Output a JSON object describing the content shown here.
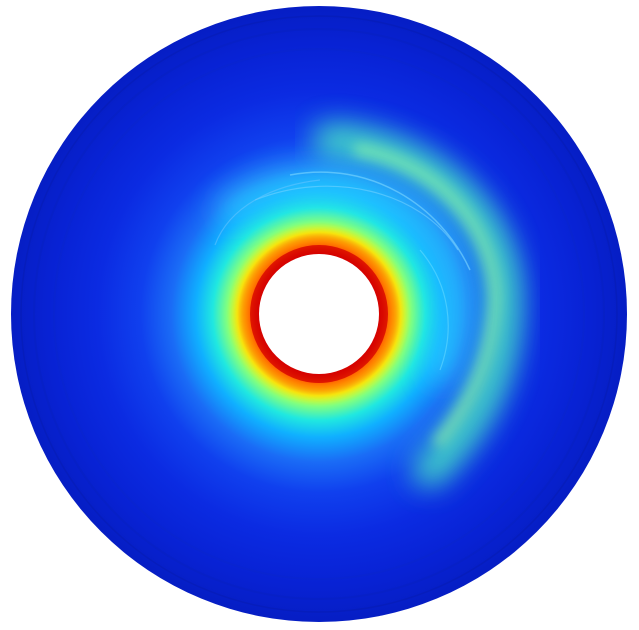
{
  "figure": {
    "kind": "annular-field-map",
    "colormap": "jet",
    "colormap_stops": [
      "#00008f",
      "#0000ff",
      "#0080ff",
      "#00ffff",
      "#80ff80",
      "#ffff00",
      "#ff8000",
      "#ff0000",
      "#800000"
    ],
    "background_color": "#ffffff",
    "hole_color": "#ffffff",
    "outer_field_color": "#0a1fd6",
    "inner_edge_color": "#c80000"
  }
}
